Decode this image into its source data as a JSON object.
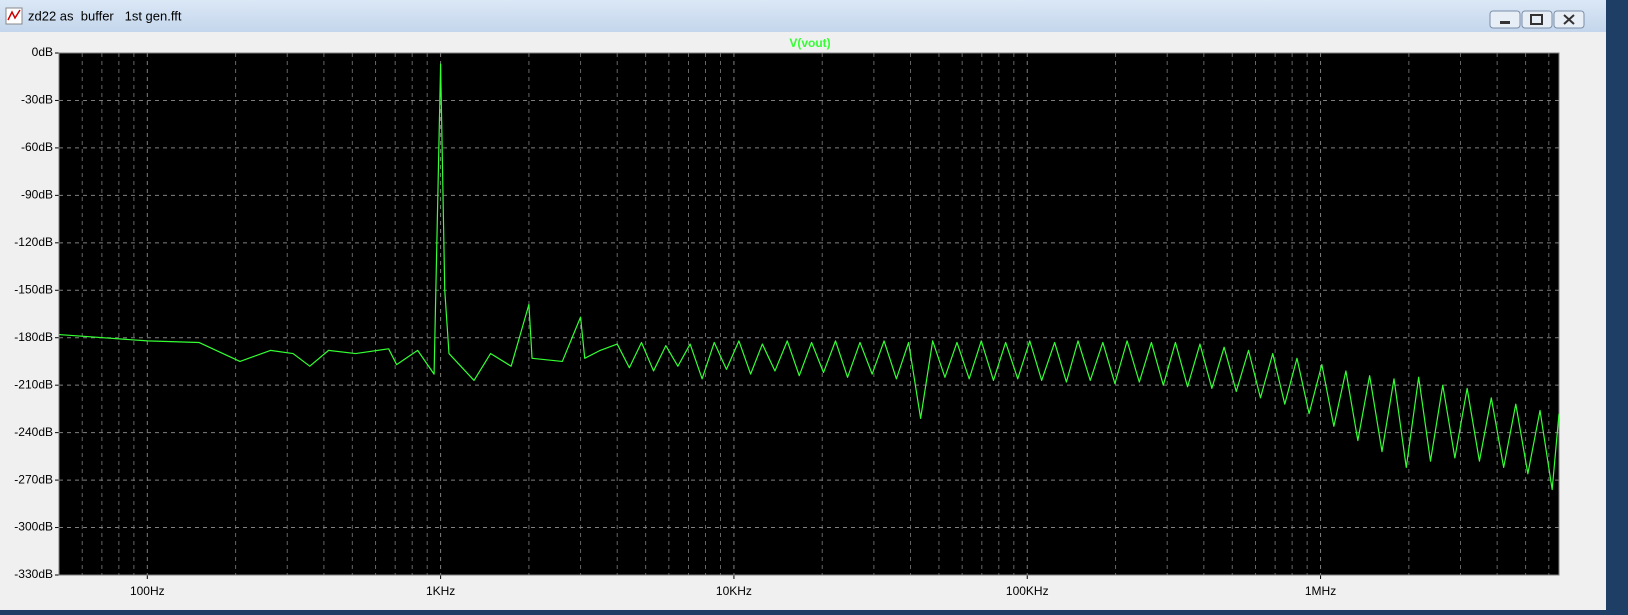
{
  "window": {
    "title": "zd22 as  buffer   1st gen.fft"
  },
  "chart_data": {
    "type": "line",
    "xscale": "log",
    "grid": true,
    "minor_grid": true,
    "xlim": [
      50,
      6500000
    ],
    "ylim": [
      -330,
      0
    ],
    "xticks": [
      {
        "value": 100,
        "label": "100Hz"
      },
      {
        "value": 1000,
        "label": "1KHz"
      },
      {
        "value": 10000,
        "label": "10KHz"
      },
      {
        "value": 100000,
        "label": "100KHz"
      },
      {
        "value": 1000000,
        "label": "1MHz"
      }
    ],
    "yticks": [
      {
        "value": 0,
        "label": "0dB"
      },
      {
        "value": -30,
        "label": "-30dB"
      },
      {
        "value": -60,
        "label": "-60dB"
      },
      {
        "value": -90,
        "label": "-90dB"
      },
      {
        "value": -120,
        "label": "-120dB"
      },
      {
        "value": -150,
        "label": "-150dB"
      },
      {
        "value": -180,
        "label": "-180dB"
      },
      {
        "value": -210,
        "label": "-210dB"
      },
      {
        "value": -240,
        "label": "-240dB"
      },
      {
        "value": -270,
        "label": "-270dB"
      },
      {
        "value": -300,
        "label": "-300dB"
      },
      {
        "value": -330,
        "label": "-330dB"
      }
    ],
    "x": [
      50,
      100,
      150,
      207,
      263,
      314,
      358,
      415,
      513,
      665,
      708,
      835,
      950,
      1000,
      1033,
      1068,
      1300,
      1480,
      1740,
      2000,
      2050,
      2600,
      3000,
      3100,
      3500,
      4000,
      4400,
      4840,
      5320,
      5860,
      6440,
      7090,
      7790,
      8570,
      9430,
      10400,
      11400,
      12500,
      13800,
      15200,
      16700,
      18400,
      20200,
      22200,
      24400,
      26900,
      29600,
      32500,
      35800,
      39400,
      43300,
      47600,
      52400,
      57600,
      63400,
      69700,
      76700,
      84400,
      92800,
      102000,
      112000,
      124000,
      136000,
      149000,
      164000,
      181000,
      199000,
      219000,
      241000,
      265000,
      291000,
      320000,
      352000,
      388000,
      426000,
      469000,
      516000,
      568000,
      624000,
      687000,
      755000,
      831000,
      914000,
      1010000,
      1110000,
      1220000,
      1340000,
      1470000,
      1620000,
      1780000,
      1960000,
      2160000,
      2370000,
      2610000,
      2870000,
      3160000,
      3480000,
      3820000,
      4210000,
      4630000,
      5090000,
      5600000,
      6160000,
      6500000
    ],
    "series": [
      {
        "name": "V(vout)",
        "color": "#33ff33",
        "values": [
          -178,
          -182,
          -183,
          -195,
          -188,
          -190,
          -198,
          -188,
          -190,
          -187,
          -197,
          -188,
          -203,
          -7,
          -150,
          -190,
          -207,
          -190,
          -198,
          -159,
          -193,
          -195,
          -167,
          -193,
          -188,
          -184,
          -199,
          -183,
          -201,
          -185,
          -198,
          -184,
          -206,
          -183,
          -200,
          -182,
          -203,
          -184,
          -201,
          -182,
          -204,
          -183,
          -202,
          -182,
          -205,
          -183,
          -203,
          -182,
          -206,
          -183,
          -231,
          -182,
          -205,
          -183,
          -206,
          -182,
          -207,
          -183,
          -206,
          -182,
          -207,
          -183,
          -208,
          -182,
          -207,
          -183,
          -209,
          -182,
          -208,
          -183,
          -210,
          -183,
          -211,
          -184,
          -212,
          -186,
          -214,
          -188,
          -218,
          -190,
          -222,
          -193,
          -228,
          -197,
          -236,
          -201,
          -245,
          -204,
          -252,
          -206,
          -262,
          -205,
          -258,
          -210,
          -256,
          -212,
          -258,
          -218,
          -262,
          -222,
          -266,
          -226,
          -276,
          -228
        ]
      }
    ]
  }
}
